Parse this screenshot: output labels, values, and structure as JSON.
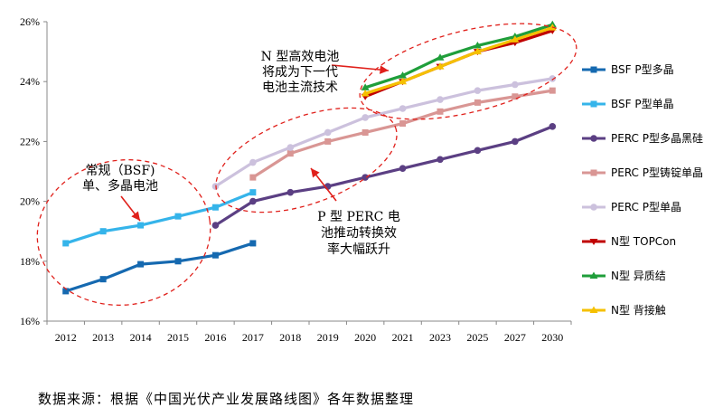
{
  "chart_data": {
    "type": "line",
    "title": "",
    "xlabel": "",
    "ylabel": "",
    "ylim": [
      16,
      26
    ],
    "y_ticks": [
      "16%",
      "18%",
      "20%",
      "22%",
      "24%",
      "26%"
    ],
    "y_tick_values": [
      16,
      18,
      20,
      22,
      24,
      26
    ],
    "categories": [
      "2012",
      "2013",
      "2014",
      "2015",
      "2016",
      "2017",
      "2018",
      "2019",
      "2020",
      "2021",
      "2023",
      "2025",
      "2027",
      "2030"
    ],
    "grid": false,
    "legend_position": "right",
    "series": [
      {
        "name": "BSF P型多晶",
        "color": "#1569b0",
        "values": [
          17.0,
          17.4,
          17.9,
          18.0,
          18.2,
          18.6,
          null,
          null,
          null,
          null,
          null,
          null,
          null,
          null
        ]
      },
      {
        "name": "BSF P型单晶",
        "color": "#35b4ea",
        "values": [
          18.6,
          19.0,
          19.2,
          19.5,
          19.8,
          20.3,
          null,
          null,
          null,
          null,
          null,
          null,
          null,
          null
        ]
      },
      {
        "name": "PERC P型多晶黑硅",
        "color": "#5b3f83",
        "values": [
          null,
          null,
          null,
          null,
          19.2,
          20.0,
          20.3,
          20.5,
          20.8,
          21.1,
          21.4,
          21.7,
          22.0,
          22.5
        ]
      },
      {
        "name": "PERC P型铸锭单晶",
        "color": "#d99694",
        "values": [
          null,
          null,
          null,
          null,
          null,
          20.8,
          21.6,
          22.0,
          22.3,
          22.6,
          23.0,
          23.3,
          23.5,
          23.7
        ]
      },
      {
        "name": "PERC P型单晶",
        "color": "#ccc1dd",
        "values": [
          null,
          null,
          null,
          null,
          20.5,
          21.3,
          21.8,
          22.3,
          22.8,
          23.1,
          23.4,
          23.7,
          23.9,
          24.1
        ]
      },
      {
        "name": "N型 TOPCon",
        "color": "#c00000",
        "values": [
          null,
          null,
          null,
          null,
          null,
          null,
          null,
          null,
          23.5,
          24.0,
          24.5,
          25.0,
          25.3,
          25.7
        ]
      },
      {
        "name": "N型 异质结",
        "color": "#1f9e3a",
        "values": [
          null,
          null,
          null,
          null,
          null,
          null,
          null,
          null,
          23.8,
          24.2,
          24.8,
          25.2,
          25.5,
          25.9
        ]
      },
      {
        "name": "N型 背接触",
        "color": "#f5c000",
        "values": [
          null,
          null,
          null,
          null,
          null,
          null,
          null,
          null,
          23.6,
          24.0,
          24.5,
          25.0,
          25.4,
          25.8
        ]
      }
    ],
    "annotations": [
      {
        "id": "n",
        "lines": [
          "N 型高效电池",
          "将成为下一代",
          "电池主流技术"
        ]
      },
      {
        "id": "bsf",
        "lines": [
          "常规（BSF)",
          "单、多晶电池"
        ]
      },
      {
        "id": "perc",
        "lines": [
          "P 型 PERC 电",
          "池推动转换效",
          "率大幅跃升"
        ]
      }
    ]
  },
  "source_note": "数据来源：根据《中国光伏产业发展路线图》各年数据整理"
}
